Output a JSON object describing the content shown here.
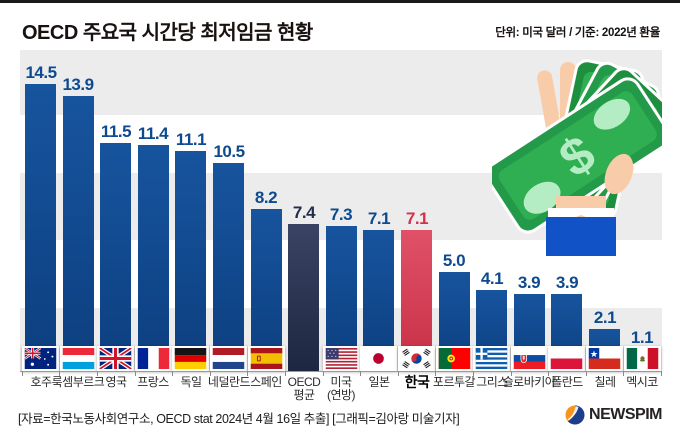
{
  "header": {
    "title": "OECD 주요국 시간당 최저임금 현황",
    "unit_note": "단위: 미국 달러 / 기준: 2022년 환율"
  },
  "chart_data": {
    "type": "bar",
    "title": "OECD 주요국 시간당 최저임금 현황",
    "unit": "미국 달러, 2022년 환율 기준",
    "categories": [
      "호주",
      "룩셈부르크",
      "영국",
      "프랑스",
      "독일",
      "네덜란드",
      "스페인",
      "OECD\n평균",
      "미국\n(연방)",
      "일본",
      "한국",
      "포르투갈",
      "그리스",
      "슬로바키아",
      "폴란드",
      "칠레",
      "멕시코"
    ],
    "values": [
      14.5,
      13.9,
      11.5,
      11.4,
      11.1,
      10.5,
      8.2,
      7.4,
      7.3,
      7.1,
      7.1,
      5.0,
      4.1,
      3.9,
      3.9,
      2.1,
      1.1
    ],
    "flags": [
      "australia",
      "luxembourg",
      "uk",
      "france",
      "germany",
      "netherlands",
      "spain",
      null,
      "usa",
      "japan",
      "korea",
      "portugal",
      "greece",
      "slovakia",
      "poland",
      "chile",
      "mexico"
    ],
    "highlight_index": 10,
    "average_index": 7,
    "ylim": [
      0,
      15
    ],
    "grid": "striped-bands",
    "legend": "none",
    "colors": {
      "bar": "#0E4489",
      "bar_top": "#17549E",
      "bar_bottom": "#0C3F7F",
      "bar_average_top": "#3A4363",
      "bar_average_bottom": "#1E2740",
      "bar_highlight_top": "#E05168",
      "bar_highlight_bottom": "#C72F45",
      "value_label": "#0D4A8F",
      "value_label_average": "#232E4B",
      "value_label_highlight": "#D6304A",
      "stripe": "#ECECEC"
    }
  },
  "illustration": {
    "name": "hand-holding-dollar-bills"
  },
  "footer": {
    "source": "[자료=한국노동사회연구소, OECD stat 2024년 4월 16일 추출] [그래픽=김아랑 미술기자]",
    "brand": "NEWSPIM"
  }
}
